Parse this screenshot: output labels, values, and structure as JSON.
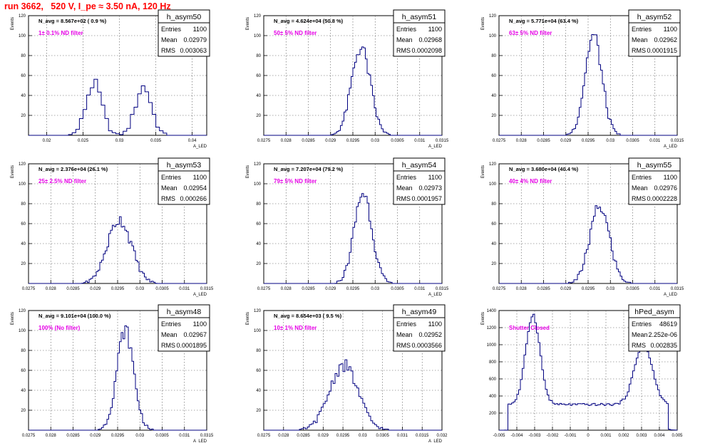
{
  "page": {
    "title": "run 3662,   520 V, I_pe ≈ 3.50 nA, 120 Hz"
  },
  "chart_data": [
    {
      "type": "histogram",
      "hist_name": "h_asym50",
      "navg_label": "N_avg = 8.567e+02 ( 0.9 %)",
      "filter_label": "1± 0.1% ND filter",
      "stats": {
        "Entries": "1100",
        "Mean": "0.02979",
        "RMS": "0.003063"
      },
      "ylabel": "Events",
      "xlabel": "A_LED",
      "xlim": [
        0.0175,
        0.042
      ],
      "ylim": [
        0,
        120
      ],
      "xticks": [
        0.02,
        0.025,
        0.03,
        0.035,
        0.04
      ],
      "xtick_labels": [
        "0.02",
        "0.025",
        "0.03",
        "0.035",
        "0.04"
      ],
      "yticks": [
        20,
        40,
        60,
        80,
        100,
        120
      ],
      "bin_width": 0.0005,
      "peaks": [
        {
          "center": 0.0265,
          "sigma": 0.0011,
          "amp": 52
        },
        {
          "center": 0.0333,
          "sigma": 0.0011,
          "amp": 49
        }
      ]
    },
    {
      "type": "histogram",
      "hist_name": "h_asym51",
      "navg_label": "N_avg = 4.624e+04 (50.8 %)",
      "filter_label": "50± 5% ND filter",
      "stats": {
        "Entries": "1100",
        "Mean": "0.02968",
        "RMS": "0.0002098"
      },
      "ylabel": "Events",
      "xlabel": "A_LED",
      "xlim": [
        0.0275,
        0.0315
      ],
      "ylim": [
        0,
        120
      ],
      "xticks": [
        0.0275,
        0.028,
        0.0285,
        0.029,
        0.0295,
        0.03,
        0.0305,
        0.031,
        0.0315
      ],
      "xtick_labels": [
        "0.0275",
        "0.028",
        "0.0285",
        "0.029",
        "0.0295",
        "0.03",
        "0.0305",
        "0.031",
        "0.0315"
      ],
      "yticks": [
        20,
        40,
        60,
        80,
        100,
        120
      ],
      "bin_width": 4e-05,
      "peaks": [
        {
          "center": 0.02968,
          "sigma": 0.00021,
          "amp": 88
        }
      ]
    },
    {
      "type": "histogram",
      "hist_name": "h_asym52",
      "navg_label": "N_avg = 5.771e+04 (63.4 %)",
      "filter_label": "63± 5% ND filter",
      "stats": {
        "Entries": "1100",
        "Mean": "0.02962",
        "RMS": "0.0001915"
      },
      "ylabel": "Events",
      "xlabel": "A_LED",
      "xlim": [
        0.0275,
        0.0315
      ],
      "ylim": [
        0,
        120
      ],
      "xticks": [
        0.0275,
        0.028,
        0.0285,
        0.029,
        0.0295,
        0.03,
        0.0305,
        0.031,
        0.0315
      ],
      "xtick_labels": [
        "0.0275",
        "0.028",
        "0.0285",
        "0.029",
        "0.0295",
        "0.03",
        "0.0305",
        "0.031",
        "0.0315"
      ],
      "yticks": [
        20,
        40,
        60,
        80,
        100,
        120
      ],
      "bin_width": 4e-05,
      "peaks": [
        {
          "center": 0.02962,
          "sigma": 0.00019,
          "amp": 100
        }
      ]
    },
    {
      "type": "histogram",
      "hist_name": "h_asym53",
      "navg_label": "N_avg = 2.376e+04 (26.1 %)",
      "filter_label": "25± 2.5% ND filter",
      "stats": {
        "Entries": "1100",
        "Mean": "0.02954",
        "RMS": "0.000266"
      },
      "ylabel": "Events",
      "xlabel": "A_LED",
      "xlim": [
        0.0275,
        0.0315
      ],
      "ylim": [
        0,
        120
      ],
      "xticks": [
        0.0275,
        0.028,
        0.0285,
        0.029,
        0.0295,
        0.03,
        0.0305,
        0.031,
        0.0315
      ],
      "xtick_labels": [
        "0.0275",
        "0.028",
        "0.0285",
        "0.029",
        "0.0295",
        "0.03",
        "0.0305",
        "0.031",
        "0.0315"
      ],
      "yticks": [
        20,
        40,
        60,
        80,
        100,
        120
      ],
      "bin_width": 4e-05,
      "peaks": [
        {
          "center": 0.02954,
          "sigma": 0.00027,
          "amp": 64
        }
      ]
    },
    {
      "type": "histogram",
      "hist_name": "h_asym54",
      "navg_label": "N_avg = 7.207e+04 (79.2 %)",
      "filter_label": "79± 5% ND filter",
      "stats": {
        "Entries": "1100",
        "Mean": "0.02973",
        "RMS": "0.0001957"
      },
      "ylabel": "Events",
      "xlabel": "A_LED",
      "xlim": [
        0.0275,
        0.0315
      ],
      "ylim": [
        0,
        120
      ],
      "xticks": [
        0.0275,
        0.028,
        0.0285,
        0.029,
        0.0295,
        0.03,
        0.0305,
        0.031,
        0.0315
      ],
      "xtick_labels": [
        "0.0275",
        "0.028",
        "0.0285",
        "0.029",
        "0.0295",
        "0.03",
        "0.0305",
        "0.031",
        "0.0315"
      ],
      "yticks": [
        20,
        40,
        60,
        80,
        100,
        120
      ],
      "bin_width": 4e-05,
      "peaks": [
        {
          "center": 0.02973,
          "sigma": 0.0002,
          "amp": 91
        }
      ]
    },
    {
      "type": "histogram",
      "hist_name": "h_asym55",
      "navg_label": "N_avg = 3.680e+04 (40.4 %)",
      "filter_label": "40± 4% ND filter",
      "stats": {
        "Entries": "1100",
        "Mean": "0.02976",
        "RMS": "0.0002228"
      },
      "ylabel": "Events",
      "xlabel": "A_LED",
      "xlim": [
        0.0275,
        0.0315
      ],
      "ylim": [
        0,
        120
      ],
      "xticks": [
        0.0275,
        0.028,
        0.0285,
        0.029,
        0.0295,
        0.03,
        0.0305,
        0.031,
        0.0315
      ],
      "xtick_labels": [
        "0.0275",
        "0.028",
        "0.0285",
        "0.029",
        "0.0295",
        "0.03",
        "0.0305",
        "0.031",
        "0.0315"
      ],
      "yticks": [
        20,
        40,
        60,
        80,
        100,
        120
      ],
      "bin_width": 4e-05,
      "peaks": [
        {
          "center": 0.02976,
          "sigma": 0.00022,
          "amp": 77
        }
      ]
    },
    {
      "type": "histogram",
      "hist_name": "h_asym48",
      "navg_label": "N_avg = 9.101e+04 (100.0 %)",
      "filter_label": "100% (No filter)",
      "stats": {
        "Entries": "1100",
        "Mean": "0.02967",
        "RMS": "0.0001895"
      },
      "ylabel": "Events",
      "xlabel": "A_LED",
      "xlim": [
        0.0275,
        0.0315
      ],
      "ylim": [
        0,
        120
      ],
      "xticks": [
        0.0275,
        0.028,
        0.0285,
        0.029,
        0.0295,
        0.03,
        0.0305,
        0.031,
        0.0315
      ],
      "xtick_labels": [
        "0.0275",
        "0.028",
        "0.0285",
        "0.029",
        "0.0295",
        "0.03",
        "0.0305",
        "0.031",
        "0.0315"
      ],
      "yticks": [
        20,
        40,
        60,
        80,
        100,
        120
      ],
      "bin_width": 4e-05,
      "peaks": [
        {
          "center": 0.02967,
          "sigma": 0.00019,
          "amp": 100
        }
      ]
    },
    {
      "type": "histogram",
      "hist_name": "h_asym49",
      "navg_label": "N_avg = 8.654e+03 ( 9.5 %)",
      "filter_label": "10± 1% ND filter",
      "stats": {
        "Entries": "1100",
        "Mean": "0.02952",
        "RMS": "0.0003566"
      },
      "ylabel": "Events",
      "xlabel": "A_LED",
      "xlim": [
        0.0275,
        0.032
      ],
      "ylim": [
        0,
        120
      ],
      "xticks": [
        0.0275,
        0.028,
        0.0285,
        0.029,
        0.0295,
        0.03,
        0.0305,
        0.031,
        0.0315,
        0.032
      ],
      "xtick_labels": [
        "0.0275",
        "0.028",
        "0.0285",
        "0.029",
        "0.0295",
        "0.03",
        "0.0305",
        "0.031",
        "0.0315",
        "0.032"
      ],
      "yticks": [
        20,
        40,
        60,
        80,
        100,
        120
      ],
      "bin_width": 5e-05,
      "peaks": [
        {
          "center": 0.02952,
          "sigma": 0.00036,
          "amp": 65
        }
      ]
    },
    {
      "type": "histogram",
      "hist_name": "hPed_asym",
      "navg_label": "",
      "filter_label": "Shutter Closed",
      "stats": {
        "Entries": "48619",
        "Mean": "2.252e-06",
        "RMS": "0.002835"
      },
      "ylabel": "Events",
      "xlabel": "",
      "xlim": [
        -0.005,
        0.005
      ],
      "ylim": [
        0,
        1400
      ],
      "xticks": [
        -0.005,
        -0.004,
        -0.003,
        -0.002,
        -0.001,
        0,
        0.001,
        0.002,
        0.003,
        0.004,
        0.005
      ],
      "xtick_labels": [
        "-0.005",
        "-0.004",
        "-0.003",
        "-0.002",
        "-0.001",
        "0",
        "0.001",
        "0.002",
        "0.003",
        "0.004",
        "0.005"
      ],
      "yticks": [
        200,
        400,
        600,
        800,
        1000,
        1200,
        1400
      ],
      "bin_width": 0.0001,
      "baseline": 300,
      "peaks": [
        {
          "center": -0.0031,
          "sigma": 0.0004,
          "amp": 1050
        },
        {
          "center": 0.0031,
          "sigma": 0.0005,
          "amp": 700
        }
      ]
    }
  ]
}
